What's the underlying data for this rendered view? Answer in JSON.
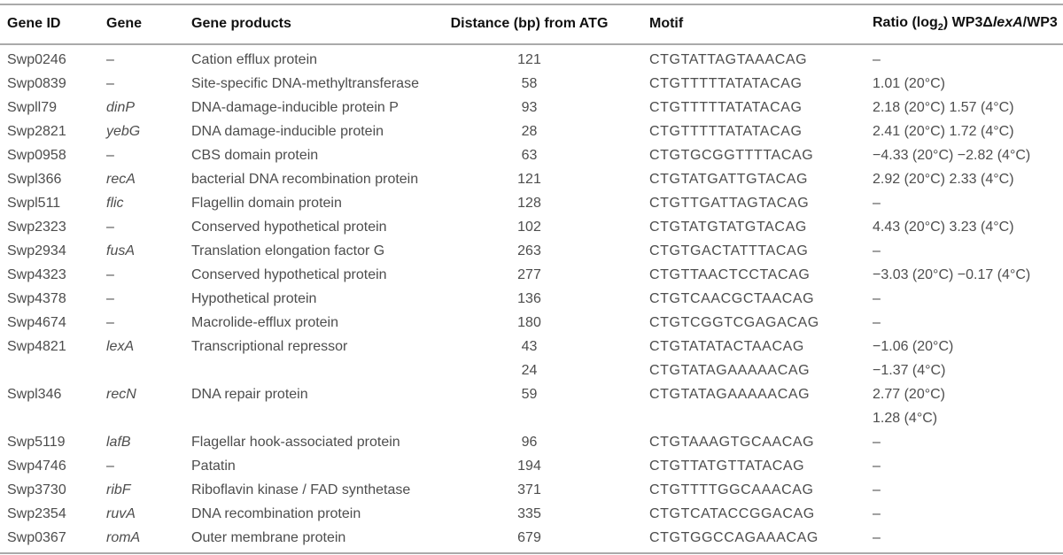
{
  "table": {
    "colors": {
      "background": "#ffffff",
      "header_text": "#111111",
      "body_text": "#4d4d4d",
      "rule_line": "#aaaaaa"
    },
    "headers": {
      "gene_id": "Gene ID",
      "gene": "Gene",
      "gene_products": "Gene products",
      "distance": "Distance (bp) from ATG",
      "motif": "Motif",
      "ratio_prefix": "Ratio (log",
      "ratio_sub": "2",
      "ratio_mid": ") WP3Δ",
      "ratio_gene": "lexA",
      "ratio_suffix": "/WP3"
    },
    "rows": [
      {
        "id": "Swp0246",
        "gene": "–",
        "italic": false,
        "product": "Cation efflux protein",
        "lines": [
          {
            "distance": "121",
            "motif": "CTGTATTAGTAAACAG",
            "ratio": "–"
          }
        ]
      },
      {
        "id": "Swp0839",
        "gene": "–",
        "italic": false,
        "product": "Site-specific DNA-methyltransferase",
        "lines": [
          {
            "distance": "58",
            "motif": "CTGTTTTTATATACAG",
            "ratio": "1.01 (20°C)"
          }
        ]
      },
      {
        "id": "Swpll79",
        "gene": "dinP",
        "italic": true,
        "product": "DNA-damage-inducible protein P",
        "lines": [
          {
            "distance": "93",
            "motif": "CTGTTTTTATATACAG",
            "ratio": "2.18 (20°C) 1.57 (4°C)"
          }
        ]
      },
      {
        "id": "Swp2821",
        "gene": "yebG",
        "italic": true,
        "product": "DNA damage-inducible protein",
        "lines": [
          {
            "distance": "28",
            "motif": "CTGTTTTTATATACAG",
            "ratio": "2.41 (20°C) 1.72 (4°C)"
          }
        ]
      },
      {
        "id": "Swp0958",
        "gene": "–",
        "italic": false,
        "product": "CBS domain protein",
        "lines": [
          {
            "distance": "63",
            "motif": "CTGTGCGGTTTTACAG",
            "ratio": "−4.33 (20°C) −2.82 (4°C)"
          }
        ]
      },
      {
        "id": "Swpl366",
        "gene": "recA",
        "italic": true,
        "product": "bacterial DNA recombination protein",
        "lines": [
          {
            "distance": "121",
            "motif": "CTGTATGATTGTACAG",
            "ratio": "2.92 (20°C) 2.33 (4°C)"
          }
        ]
      },
      {
        "id": "Swpl511",
        "gene": "flic",
        "italic": true,
        "product": "Flagellin domain protein",
        "lines": [
          {
            "distance": "128",
            "motif": "CTGTTGATTAGTACAG",
            "ratio": "–"
          }
        ]
      },
      {
        "id": "Swp2323",
        "gene": "–",
        "italic": false,
        "product": "Conserved hypothetical protein",
        "lines": [
          {
            "distance": "102",
            "motif": "CTGTATGTATGTACAG",
            "ratio": "4.43 (20°C) 3.23 (4°C)"
          }
        ]
      },
      {
        "id": "Swp2934",
        "gene": "fusA",
        "italic": true,
        "product": "Translation elongation factor G",
        "lines": [
          {
            "distance": "263",
            "motif": "CTGTGACTATTTACAG",
            "ratio": "–"
          }
        ]
      },
      {
        "id": "Swp4323",
        "gene": "–",
        "italic": false,
        "product": "Conserved hypothetical protein",
        "lines": [
          {
            "distance": "277",
            "motif": "CTGTTAACTCCTACAG",
            "ratio": "−3.03 (20°C) −0.17 (4°C)"
          }
        ]
      },
      {
        "id": "Swp4378",
        "gene": "–",
        "italic": false,
        "product": "Hypothetical protein",
        "lines": [
          {
            "distance": "136",
            "motif": "CTGTCAACGCTAACAG",
            "ratio": "–"
          }
        ]
      },
      {
        "id": "Swp4674",
        "gene": "–",
        "italic": false,
        "product": "Macrolide-efflux protein",
        "lines": [
          {
            "distance": "180",
            "motif": "CTGTCGGTCGAGACAG",
            "ratio": "–"
          }
        ]
      },
      {
        "id": "Swp4821",
        "gene": "lexA",
        "italic": true,
        "product": "Transcriptional repressor",
        "lines": [
          {
            "distance": "43",
            "motif": "CTGTATATACTAACAG",
            "ratio": "−1.06 (20°C)"
          },
          {
            "distance": "24",
            "motif": "CTGTATAGAAAAACAG",
            "ratio": "−1.37 (4°C)"
          }
        ]
      },
      {
        "id": "Swpl346",
        "gene": "recN",
        "italic": true,
        "product": "DNA repair protein",
        "lines": [
          {
            "distance": "59",
            "motif": "CTGTATAGAAAAACAG",
            "ratio": "2.77 (20°C)"
          },
          {
            "distance": "",
            "motif": "",
            "ratio": "1.28 (4°C)"
          }
        ]
      },
      {
        "id": "Swp5119",
        "gene": "lafB",
        "italic": true,
        "product": "Flagellar hook-associated protein",
        "lines": [
          {
            "distance": "96",
            "motif": "CTGTAAAGTGCAACAG",
            "ratio": "–"
          }
        ]
      },
      {
        "id": "Swp4746",
        "gene": "–",
        "italic": false,
        "product": "Patatin",
        "lines": [
          {
            "distance": "194",
            "motif": "CTGTTATGTTATACAG",
            "ratio": "–"
          }
        ]
      },
      {
        "id": "Swp3730",
        "gene": "ribF",
        "italic": true,
        "product": "Riboflavin kinase / FAD synthetase",
        "lines": [
          {
            "distance": "371",
            "motif": "CTGTTTTGGCAAACAG",
            "ratio": "–"
          }
        ]
      },
      {
        "id": "Swp2354",
        "gene": "ruvA",
        "italic": true,
        "product": "DNA recombination protein",
        "lines": [
          {
            "distance": "335",
            "motif": "CTGTCATACCGGACAG",
            "ratio": "–"
          }
        ]
      },
      {
        "id": "Swp0367",
        "gene": "romA",
        "italic": true,
        "product": "Outer membrane protein",
        "lines": [
          {
            "distance": "679",
            "motif": "CTGTGGCCAGAAACAG",
            "ratio": "–"
          }
        ]
      }
    ]
  }
}
